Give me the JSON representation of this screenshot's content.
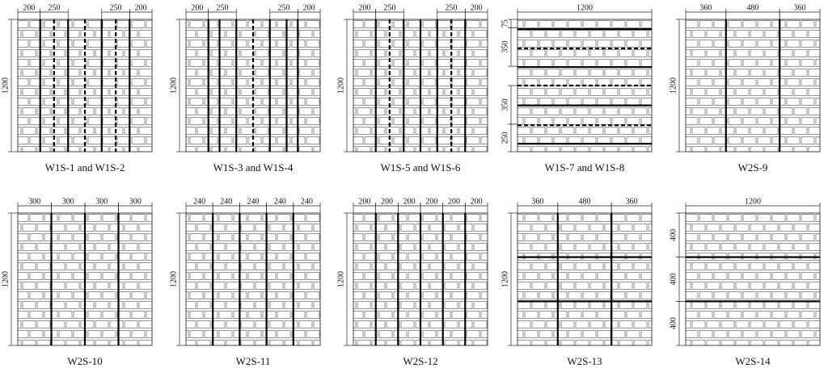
{
  "panels": [
    {
      "caption": "W1S-1 and W1S-2",
      "top_dims": [
        "200",
        "250",
        "250",
        "200"
      ],
      "side_dim": "1200"
    },
    {
      "caption": "W1S-3 and W1S-4",
      "top_dims": [
        "200",
        "250",
        "250",
        "200"
      ],
      "side_dim": "1200"
    },
    {
      "caption": "W1S-5 and W1S-6",
      "top_dims": [
        "200",
        "250",
        "250",
        "200"
      ],
      "side_dim": "1200"
    },
    {
      "caption": "W1S-7 and W1S-8",
      "top_dim": "1200",
      "side_dims": [
        "75",
        "350",
        "350",
        "250"
      ]
    },
    {
      "caption": "W2S-9",
      "top_dims": [
        "360",
        "480",
        "360"
      ],
      "side_dim": "1200"
    },
    {
      "caption": "W2S-10",
      "top_dims": [
        "300",
        "300",
        "300",
        "300"
      ],
      "side_dim": "1200"
    },
    {
      "caption": "W2S-11",
      "top_dims": [
        "240",
        "240",
        "240",
        "240",
        "240"
      ],
      "side_dim": "1200"
    },
    {
      "caption": "W2S-12",
      "top_dims": [
        "200",
        "200",
        "200",
        "200",
        "200",
        "200"
      ],
      "side_dim": "1200"
    },
    {
      "caption": "W2S-13",
      "top_dims": [
        "360",
        "480",
        "360"
      ],
      "side_dim": "1200"
    },
    {
      "caption": "W2S-14",
      "top_dim": "1200",
      "side_dims": [
        "400",
        "400",
        "400"
      ]
    }
  ]
}
